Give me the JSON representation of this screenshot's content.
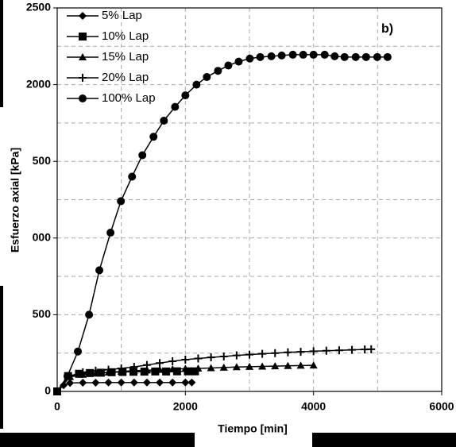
{
  "chart_data": {
    "type": "line",
    "annotation": "b)",
    "x_label": "Tiempo [min]",
    "y_label": "Esfuerzo axial [kPa]",
    "xlim": [
      0,
      6000
    ],
    "xticks": [
      0,
      2000,
      4000,
      6000
    ],
    "xgrid": [
      1000,
      2000,
      3000,
      4000,
      5000
    ],
    "ylim": [
      0,
      2500
    ],
    "yticks": [
      0,
      500,
      {
        "value": 1000,
        "label": "000"
      },
      {
        "value": 1500,
        "label": "500"
      },
      2000,
      2500
    ],
    "ygrid": [
      250,
      500,
      750,
      1000,
      1250,
      1500,
      1750,
      2000,
      2250
    ],
    "grid": true,
    "legend": "upper left",
    "series": [
      {
        "name": "5% Lap",
        "color": "#000000",
        "marker": "diamond",
        "x": [
          0,
          100,
          200,
          400,
          600,
          800,
          1000,
          1200,
          1400,
          1600,
          1800,
          2000,
          2100
        ],
        "values": [
          0,
          40,
          55,
          57,
          57,
          58,
          58,
          58,
          58,
          58,
          58,
          58,
          58
        ]
      },
      {
        "name": "10% Lap",
        "color": "#000000",
        "marker": "square",
        "x": [
          0,
          170,
          340,
          510,
          680,
          850,
          1020,
          1190,
          1360,
          1530,
          1700,
          1870,
          2040,
          2150
        ],
        "values": [
          0,
          100,
          115,
          120,
          122,
          125,
          127,
          128,
          129,
          130,
          130,
          131,
          131,
          131
        ]
      },
      {
        "name": "15% Lap",
        "color": "#000000",
        "marker": "triangle",
        "x": [
          0,
          200,
          400,
          600,
          800,
          1000,
          1200,
          1400,
          1600,
          1800,
          2000,
          2200,
          2400,
          2600,
          2800,
          3000,
          3200,
          3400,
          3600,
          3800,
          4000
        ],
        "values": [
          0,
          95,
          110,
          118,
          125,
          130,
          135,
          138,
          142,
          145,
          148,
          150,
          153,
          156,
          159,
          161,
          163,
          165,
          167,
          169,
          170
        ]
      },
      {
        "name": "20% Lap",
        "color": "#000000",
        "marker": "plus",
        "x": [
          0,
          200,
          400,
          600,
          800,
          1000,
          1200,
          1400,
          1600,
          1800,
          2000,
          2200,
          2400,
          2600,
          2800,
          3000,
          3200,
          3400,
          3600,
          3800,
          4000,
          4200,
          4400,
          4600,
          4800,
          4900
        ],
        "values": [
          0,
          100,
          125,
          135,
          142,
          150,
          160,
          172,
          185,
          197,
          207,
          215,
          222,
          228,
          235,
          240,
          245,
          250,
          255,
          258,
          262,
          265,
          268,
          271,
          274,
          275
        ]
      },
      {
        "name": "100% Lap",
        "color": "#000000",
        "marker": "circle",
        "x": [
          0,
          160,
          323,
          497,
          658,
          832,
          994,
          1168,
          1329,
          1503,
          1665,
          1839,
          2000,
          2174,
          2335,
          2509,
          2671,
          2832,
          3006,
          3168,
          3342,
          3503,
          3677,
          3839,
          4000,
          4174,
          4330,
          4484,
          4658,
          4820,
          4994,
          5155
        ],
        "values": [
          0,
          100,
          260,
          500,
          790,
          1035,
          1240,
          1400,
          1540,
          1660,
          1765,
          1855,
          1930,
          2000,
          2050,
          2090,
          2125,
          2150,
          2170,
          2180,
          2185,
          2190,
          2195,
          2195,
          2195,
          2195,
          2185,
          2180,
          2180,
          2180,
          2180,
          2180
        ]
      }
    ]
  }
}
